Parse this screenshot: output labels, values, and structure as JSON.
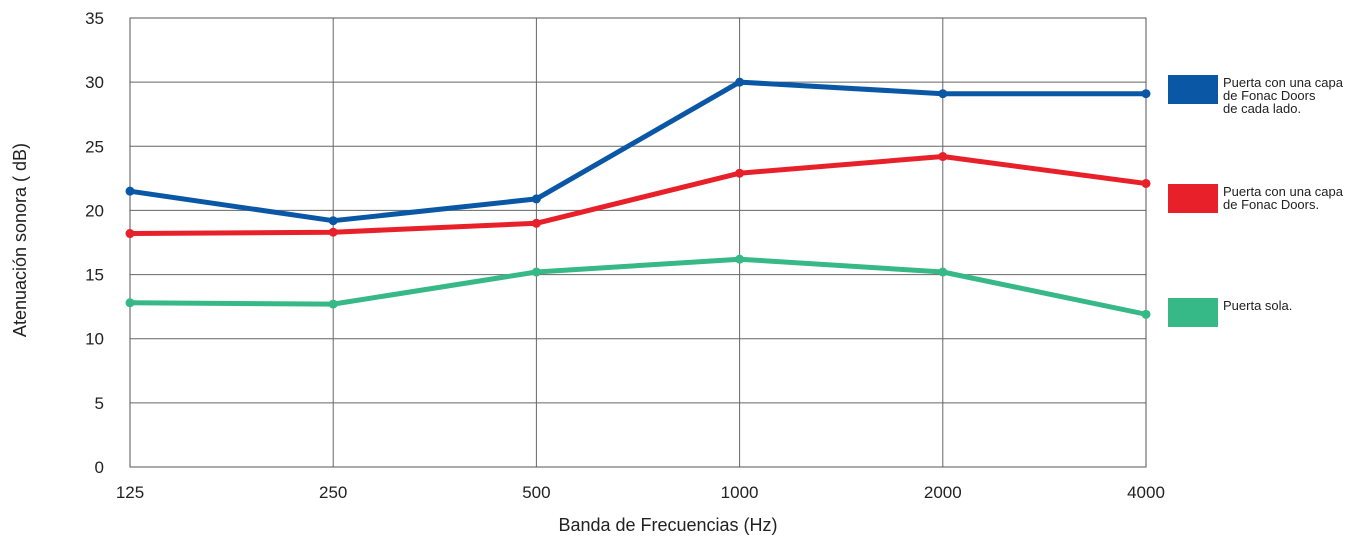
{
  "chart_data": {
    "type": "line",
    "categories": [
      "125",
      "250",
      "500",
      "1000",
      "2000",
      "4000"
    ],
    "xlabel": "Banda de Frecuencias (Hz)",
    "ylabel": "Atenuación sonora ( dB)",
    "ylim": [
      0,
      35
    ],
    "yticks": [
      "0",
      "5",
      "10",
      "15",
      "20",
      "25",
      "30",
      "35"
    ],
    "grid": true,
    "legend_position": "right",
    "series": [
      {
        "name": "Puerta con una capa de Fonac Doors de cada lado.",
        "legend_lines": [
          "Puerta con una capa",
          "de Fonac Doors",
          "de cada lado."
        ],
        "color": "#0a58a5",
        "values": [
          21.5,
          19.2,
          20.9,
          30.0,
          29.1,
          29.1
        ]
      },
      {
        "name": "Puerta con una capa de Fonac Doors.",
        "legend_lines": [
          "Puerta con una capa",
          "de Fonac Doors."
        ],
        "color": "#e8202a",
        "values": [
          18.2,
          18.3,
          19.0,
          22.9,
          24.2,
          22.1
        ]
      },
      {
        "name": "Puerta sola.",
        "legend_lines": [
          "Puerta sola."
        ],
        "color": "#36b887",
        "values": [
          12.8,
          12.7,
          15.2,
          16.2,
          15.2,
          11.9
        ]
      }
    ]
  }
}
